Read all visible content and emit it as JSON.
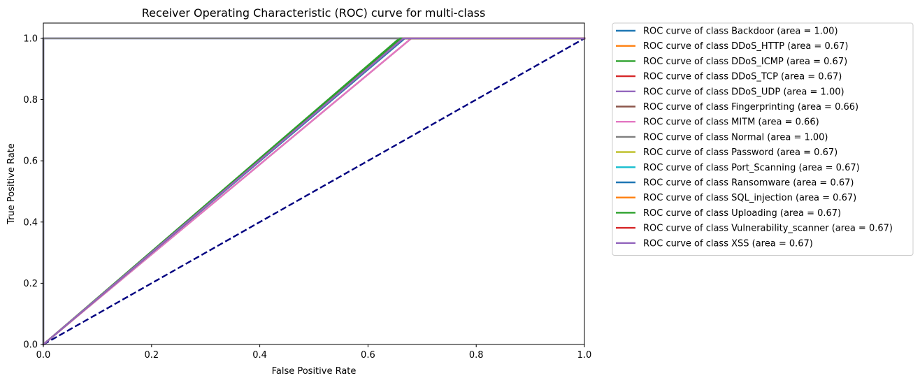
{
  "chart_data": {
    "type": "line",
    "title": "Receiver Operating Characteristic (ROC) curve for multi-class",
    "xlabel": "False Positive Rate",
    "ylabel": "True Positive Rate",
    "xlim": [
      0.0,
      1.0
    ],
    "ylim": [
      0.0,
      1.05
    ],
    "grid": false,
    "legend_position": "outside-right",
    "x_ticks": [
      {
        "value": 0.0,
        "label": "0.0"
      },
      {
        "value": 0.2,
        "label": "0.2"
      },
      {
        "value": 0.4,
        "label": "0.4"
      },
      {
        "value": 0.6,
        "label": "0.6"
      },
      {
        "value": 0.8,
        "label": "0.8"
      },
      {
        "value": 1.0,
        "label": "1.0"
      }
    ],
    "y_ticks": [
      {
        "value": 0.0,
        "label": "0.0"
      },
      {
        "value": 0.2,
        "label": "0.2"
      },
      {
        "value": 0.4,
        "label": "0.4"
      },
      {
        "value": 0.6,
        "label": "0.6"
      },
      {
        "value": 0.8,
        "label": "0.8"
      },
      {
        "value": 1.0,
        "label": "1.0"
      }
    ],
    "series": [
      {
        "name": "ROC curve of class Backdoor (area = 1.00)",
        "color": "#1f77b4",
        "x": [
          0,
          0,
          1
        ],
        "y": [
          0,
          1,
          1
        ]
      },
      {
        "name": "ROC curve of class DDoS_HTTP (area = 0.67)",
        "color": "#ff7f0e",
        "x": [
          0,
          0.665,
          1
        ],
        "y": [
          0,
          1,
          1
        ]
      },
      {
        "name": "ROC curve of class DDoS_ICMP (area = 0.67)",
        "color": "#2ca02c",
        "x": [
          0,
          0.658,
          1
        ],
        "y": [
          0,
          1,
          1
        ]
      },
      {
        "name": "ROC curve of class DDoS_TCP (area = 0.67)",
        "color": "#d62728",
        "x": [
          0,
          0.665,
          1
        ],
        "y": [
          0,
          1,
          1
        ]
      },
      {
        "name": "ROC curve of class DDoS_UDP (area = 1.00)",
        "color": "#9467bd",
        "x": [
          0,
          0,
          1
        ],
        "y": [
          0,
          1,
          1
        ]
      },
      {
        "name": "ROC curve of class Fingerprinting (area = 0.66)",
        "color": "#8c564b",
        "x": [
          0,
          0.68,
          1
        ],
        "y": [
          0,
          1,
          1
        ]
      },
      {
        "name": "ROC curve of class MITM (area = 0.66)",
        "color": "#e377c2",
        "x": [
          0,
          0.68,
          1
        ],
        "y": [
          0,
          1,
          1
        ]
      },
      {
        "name": "ROC curve of class Normal (area = 1.00)",
        "color": "#7f7f7f",
        "x": [
          0,
          0,
          1
        ],
        "y": [
          0,
          1,
          1
        ]
      },
      {
        "name": "ROC curve of class Password (area = 0.67)",
        "color": "#bcbd22",
        "x": [
          0,
          0.665,
          1
        ],
        "y": [
          0,
          1,
          1
        ]
      },
      {
        "name": "ROC curve of class Port_Scanning (area = 0.67)",
        "color": "#17becf",
        "x": [
          0,
          0.665,
          1
        ],
        "y": [
          0,
          1,
          1
        ]
      },
      {
        "name": "ROC curve of class Ransomware (area = 0.67)",
        "color": "#1f77b4",
        "x": [
          0,
          0.668,
          1
        ],
        "y": [
          0,
          1,
          1
        ]
      },
      {
        "name": "ROC curve of class SQL_injection (area = 0.67)",
        "color": "#ff7f0e",
        "x": [
          0,
          0.665,
          1
        ],
        "y": [
          0,
          1,
          1
        ]
      },
      {
        "name": "ROC curve of class Uploading (area = 0.67)",
        "color": "#2ca02c",
        "x": [
          0,
          0.66,
          1
        ],
        "y": [
          0,
          1,
          1
        ]
      },
      {
        "name": "ROC curve of class Vulnerability_scanner (area = 0.67)",
        "color": "#d62728",
        "x": [
          0,
          0.665,
          1
        ],
        "y": [
          0,
          1,
          1
        ]
      },
      {
        "name": "ROC curve of class XSS (area = 0.67)",
        "color": "#9467bd",
        "x": [
          0,
          0.665,
          1
        ],
        "y": [
          0,
          1,
          1
        ]
      }
    ],
    "reference_line": {
      "color": "#000080",
      "style": "dashed",
      "x": [
        0,
        1
      ],
      "y": [
        0,
        1
      ]
    }
  }
}
